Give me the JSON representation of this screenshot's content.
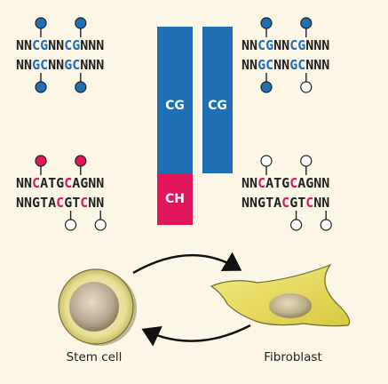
{
  "colors": {
    "background": "#fbf6e6",
    "cg_blue": "#1f6fb5",
    "ch_magenta": "#e0155a",
    "dark_text": "#222222",
    "unmethylated_fill": "#ffffff",
    "cell_outline": "#7a6f3a"
  },
  "bars": {
    "cg_label_left": "CG",
    "ch_label": "CH",
    "cg_label_right": "CG"
  },
  "panels": {
    "top_left": {
      "line1": [
        {
          "t": "NN",
          "c": "k"
        },
        {
          "t": "CG",
          "c": "b"
        },
        {
          "t": "NN",
          "c": "k"
        },
        {
          "t": "CG",
          "c": "b"
        },
        {
          "t": "NNN",
          "c": "k"
        }
      ],
      "line2": [
        {
          "t": "NN",
          "c": "k"
        },
        {
          "t": "GC",
          "c": "b"
        },
        {
          "t": "NN",
          "c": "k"
        },
        {
          "t": "GC",
          "c": "b"
        },
        {
          "t": "NNN",
          "c": "k"
        }
      ],
      "pins_top": [
        "filled-blue",
        "filled-blue"
      ],
      "pins_bottom": [
        "filled-blue",
        "filled-blue"
      ]
    },
    "top_right": {
      "line1": [
        {
          "t": "NN",
          "c": "k"
        },
        {
          "t": "CG",
          "c": "b"
        },
        {
          "t": "NN",
          "c": "k"
        },
        {
          "t": "CG",
          "c": "b"
        },
        {
          "t": "NNN",
          "c": "k"
        }
      ],
      "line2": [
        {
          "t": "NN",
          "c": "k"
        },
        {
          "t": "GC",
          "c": "b"
        },
        {
          "t": "NN",
          "c": "k"
        },
        {
          "t": "GC",
          "c": "b"
        },
        {
          "t": "NNN",
          "c": "k"
        }
      ],
      "pins_top": [
        "filled-blue",
        "filled-blue"
      ],
      "pins_bottom": [
        "filled-blue",
        "open"
      ]
    },
    "bottom_left": {
      "line1": [
        {
          "t": "NN",
          "c": "k"
        },
        {
          "t": "C",
          "c": "m"
        },
        {
          "t": "ATG",
          "c": "k"
        },
        {
          "t": "C",
          "c": "m"
        },
        {
          "t": "AGNN",
          "c": "k"
        }
      ],
      "line2": [
        {
          "t": "NNGTA",
          "c": "k"
        },
        {
          "t": "C",
          "c": "m"
        },
        {
          "t": "GT",
          "c": "k"
        },
        {
          "t": "C",
          "c": "m"
        },
        {
          "t": "NN",
          "c": "k"
        }
      ],
      "pins_top": [
        "filled-magenta",
        "filled-magenta"
      ],
      "pins_bottom": [
        "open",
        "open"
      ]
    },
    "bottom_right": {
      "line1": [
        {
          "t": "NN",
          "c": "k"
        },
        {
          "t": "C",
          "c": "m"
        },
        {
          "t": "ATG",
          "c": "k"
        },
        {
          "t": "C",
          "c": "m"
        },
        {
          "t": "AGNN",
          "c": "k"
        }
      ],
      "line2": [
        {
          "t": "NNGTA",
          "c": "k"
        },
        {
          "t": "C",
          "c": "m"
        },
        {
          "t": "GT",
          "c": "k"
        },
        {
          "t": "C",
          "c": "m"
        },
        {
          "t": "NN",
          "c": "k"
        }
      ],
      "pins_top": [
        "open",
        "open"
      ],
      "pins_bottom": [
        "open",
        "open"
      ]
    }
  },
  "cells": {
    "stem_label": "Stem cell",
    "fibroblast_label": "Fibroblast"
  }
}
